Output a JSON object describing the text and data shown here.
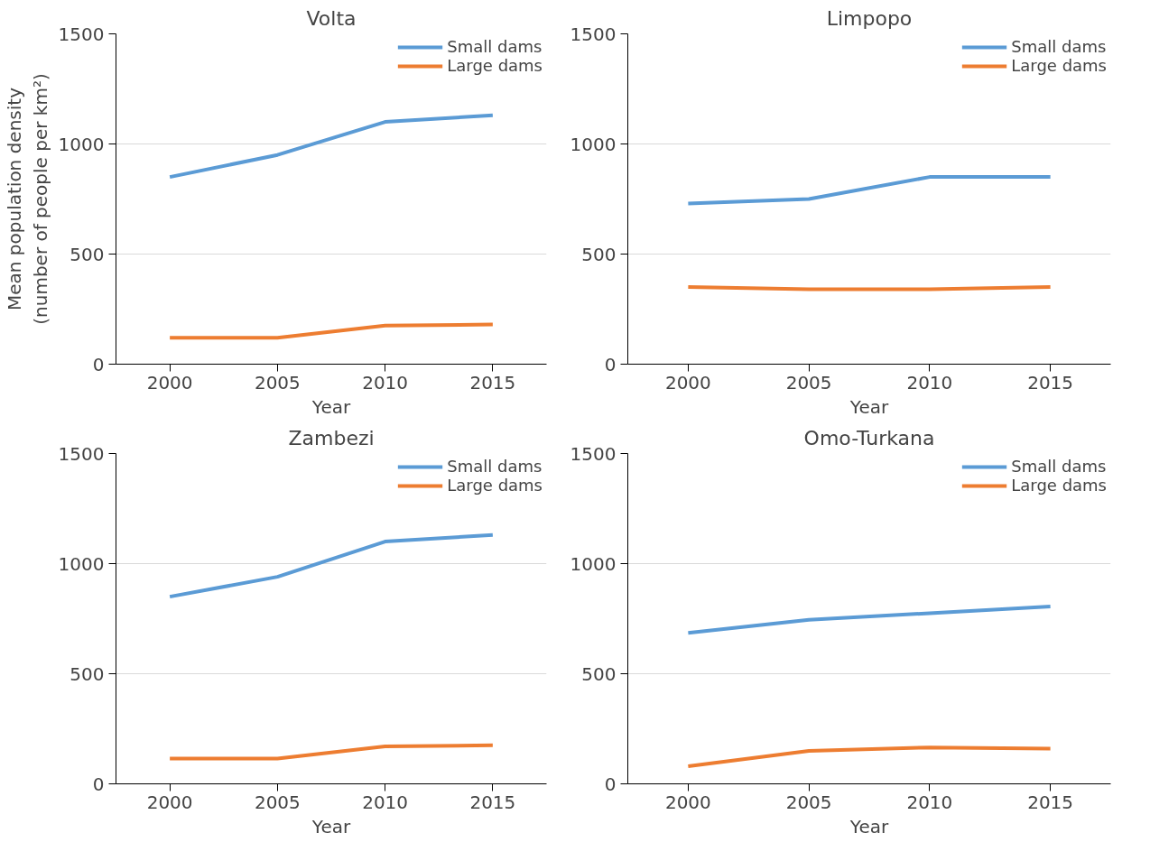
{
  "chart_data": [
    {
      "type": "line",
      "title": "Volta",
      "xlabel": "Year",
      "ylabel": "Mean population density (number of people per km²)",
      "categories": [
        "2000",
        "2005",
        "2010",
        "2015"
      ],
      "ylim": [
        0,
        1500
      ],
      "yticks": [
        0,
        500,
        1000,
        1500
      ],
      "grid": "y",
      "legend": "top right",
      "series": [
        {
          "name": "Small dams",
          "color": "#5b9bd5",
          "values": [
            850,
            950,
            1100,
            1130
          ]
        },
        {
          "name": "Large dams",
          "color": "#ed7d31",
          "values": [
            120,
            120,
            175,
            180
          ]
        }
      ]
    },
    {
      "type": "line",
      "title": "Limpopo",
      "xlabel": "Year",
      "categories": [
        "2000",
        "2005",
        "2010",
        "2015"
      ],
      "ylim": [
        0,
        1500
      ],
      "yticks": [
        0,
        500,
        1000,
        1500
      ],
      "grid": "y",
      "legend": "top right",
      "series": [
        {
          "name": "Small dams",
          "color": "#5b9bd5",
          "values": [
            730,
            750,
            850,
            850
          ]
        },
        {
          "name": "Large dams",
          "color": "#ed7d31",
          "values": [
            350,
            340,
            340,
            350
          ]
        }
      ]
    },
    {
      "type": "line",
      "title": "Zambezi",
      "xlabel": "Year",
      "categories": [
        "2000",
        "2005",
        "2010",
        "2015"
      ],
      "ylim": [
        0,
        1500
      ],
      "yticks": [
        0,
        500,
        1000,
        1500
      ],
      "grid": "y",
      "legend": "top right",
      "series": [
        {
          "name": "Small dams",
          "color": "#5b9bd5",
          "values": [
            850,
            940,
            1100,
            1130
          ]
        },
        {
          "name": "Large dams",
          "color": "#ed7d31",
          "values": [
            115,
            115,
            170,
            175
          ]
        }
      ]
    },
    {
      "type": "line",
      "title": "Omo-Turkana",
      "xlabel": "Year",
      "categories": [
        "2000",
        "2005",
        "2010",
        "2015"
      ],
      "ylim": [
        0,
        1500
      ],
      "yticks": [
        0,
        500,
        1000,
        1500
      ],
      "grid": "y",
      "legend": "top right",
      "series": [
        {
          "name": "Small dams",
          "color": "#5b9bd5",
          "values": [
            685,
            745,
            775,
            805
          ]
        },
        {
          "name": "Large dams",
          "color": "#ed7d31",
          "values": [
            80,
            150,
            165,
            160
          ]
        }
      ]
    }
  ]
}
